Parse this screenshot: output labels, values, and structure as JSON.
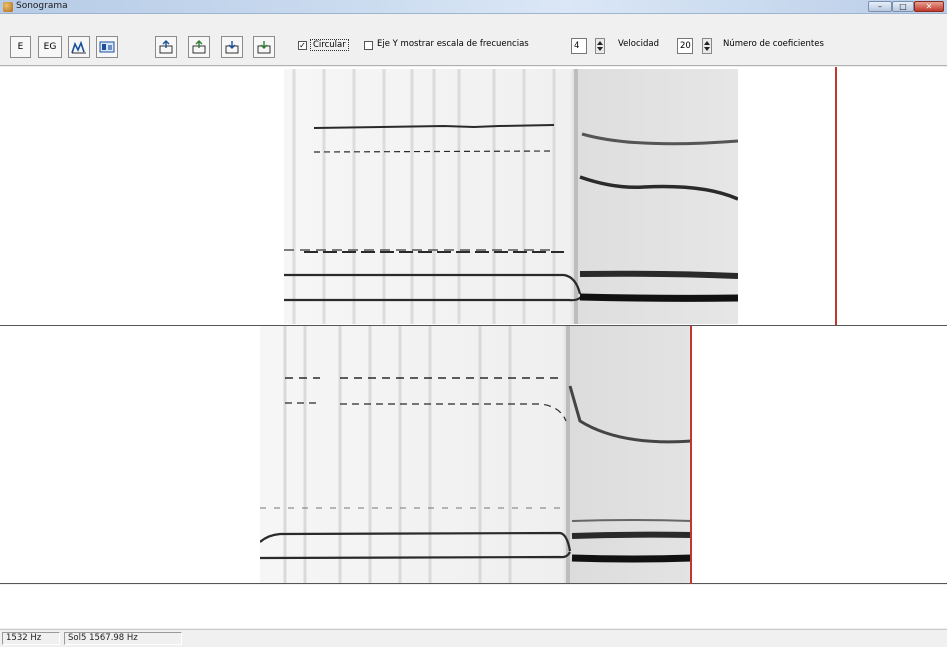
{
  "window": {
    "title": "Sonograma",
    "minimize_label": "–",
    "maximize_label": "□",
    "close_label": "✕"
  },
  "toolbar": {
    "btn_e": "E",
    "btn_eg": "EG",
    "icon_names": [
      "chart-m-icon",
      "bitmap-icon",
      "export-1-icon",
      "export-2-icon",
      "export-3-icon",
      "export-4-icon"
    ],
    "circular_checked": "✓",
    "circular_label": "Circular",
    "ejey_label": "Eje Y mostrar escala de frecuencias",
    "speed_value": "4",
    "speed_label": "Velocidad",
    "coef_value": "20",
    "coef_label": "Número de coeficientes"
  },
  "colors": {
    "cursor": "#c0392b",
    "spectro_dark": "#111111",
    "spectro_light": "#f4f4f4"
  },
  "status": {
    "freq": "1532 Hz",
    "sol": "Sol5 1567.98 Hz"
  }
}
